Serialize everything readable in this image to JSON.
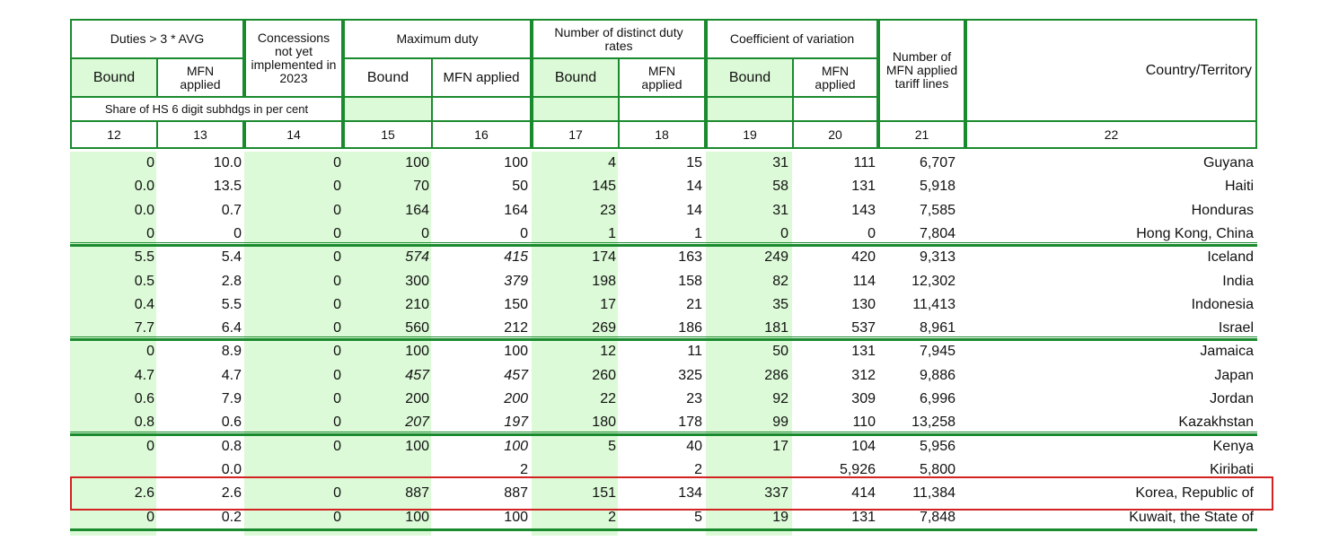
{
  "headers": {
    "duties_avg": "Duties > 3 * AVG",
    "bound": "Bound",
    "mfn_applied": "MFN applied",
    "concessions": "Concessions not yet implemented in 2023",
    "max_duty": "Maximum duty",
    "distinct_rates": "Number of distinct duty rates",
    "coef_var": "Coefficient of variation",
    "num_lines": "Number of MFN applied tariff lines",
    "country": "Country/Territory",
    "share_note": "Share of HS 6 digit subhdgs in per cent",
    "col_numbers": [
      "12",
      "13",
      "14",
      "15",
      "16",
      "17",
      "18",
      "19",
      "20",
      "21",
      "22"
    ]
  },
  "rows": [
    {
      "c12": "0",
      "c13": "10.0",
      "c14": "0",
      "c15": "100",
      "c16": "100",
      "c17": "4",
      "c18": "15",
      "c19": "31",
      "c20": "111",
      "c21": "6,707",
      "country": "Guyana"
    },
    {
      "c12": "0.0",
      "c13": "13.5",
      "c14": "0",
      "c15": "70",
      "c16": "50",
      "c17": "145",
      "c18": "14",
      "c19": "58",
      "c20": "131",
      "c21": "5,918",
      "country": "Haiti"
    },
    {
      "c12": "0.0",
      "c13": "0.7",
      "c14": "0",
      "c15": "164",
      "c16": "164",
      "c17": "23",
      "c18": "14",
      "c19": "31",
      "c20": "143",
      "c21": "7,585",
      "country": "Honduras"
    },
    {
      "c12": "0",
      "c13": "0",
      "c14": "0",
      "c15": "0",
      "c16": "0",
      "c17": "1",
      "c18": "1",
      "c19": "0",
      "c20": "0",
      "c21": "7,804",
      "country": "Hong Kong, China"
    },
    {
      "c12": "5.5",
      "c13": "5.4",
      "c14": "0",
      "c15": "574",
      "c16": "415",
      "c17": "174",
      "c18": "163",
      "c19": "249",
      "c20": "420",
      "c21": "9,313",
      "country": "Iceland"
    },
    {
      "c12": "0.5",
      "c13": "2.8",
      "c14": "0",
      "c15": "300",
      "c16": "379",
      "c17": "198",
      "c18": "158",
      "c19": "82",
      "c20": "114",
      "c21": "12,302",
      "country": "India"
    },
    {
      "c12": "0.4",
      "c13": "5.5",
      "c14": "0",
      "c15": "210",
      "c16": "150",
      "c17": "17",
      "c18": "21",
      "c19": "35",
      "c20": "130",
      "c21": "11,413",
      "country": "Indonesia"
    },
    {
      "c12": "7.7",
      "c13": "6.4",
      "c14": "0",
      "c15": "560",
      "c16": "212",
      "c17": "269",
      "c18": "186",
      "c19": "181",
      "c20": "537",
      "c21": "8,961",
      "country": "Israel"
    },
    {
      "c12": "0",
      "c13": "8.9",
      "c14": "0",
      "c15": "100",
      "c16": "100",
      "c17": "12",
      "c18": "11",
      "c19": "50",
      "c20": "131",
      "c21": "7,945",
      "country": "Jamaica"
    },
    {
      "c12": "4.7",
      "c13": "4.7",
      "c14": "0",
      "c15": "457",
      "c16": "457",
      "c17": "260",
      "c18": "325",
      "c19": "286",
      "c20": "312",
      "c21": "9,886",
      "country": "Japan"
    },
    {
      "c12": "0.6",
      "c13": "7.9",
      "c14": "0",
      "c15": "200",
      "c16": "200",
      "c17": "22",
      "c18": "23",
      "c19": "92",
      "c20": "309",
      "c21": "6,996",
      "country": "Jordan"
    },
    {
      "c12": "0.8",
      "c13": "0.6",
      "c14": "0",
      "c15": "207",
      "c16": "197",
      "c17": "180",
      "c18": "178",
      "c19": "99",
      "c20": "110",
      "c21": "13,258",
      "country": "Kazakhstan"
    },
    {
      "c12": "0",
      "c13": "0.8",
      "c14": "0",
      "c15": "100",
      "c16": "100",
      "c17": "5",
      "c18": "40",
      "c19": "17",
      "c20": "104",
      "c21": "5,956",
      "country": "Kenya"
    },
    {
      "c12": "",
      "c13": "0.0",
      "c14": "",
      "c15": "",
      "c16": "2",
      "c17": "",
      "c18": "2",
      "c19": "",
      "c20": "5,926",
      "c21": "5,800",
      "country": "Kiribati"
    },
    {
      "c12": "2.6",
      "c13": "2.6",
      "c14": "0",
      "c15": "887",
      "c16": "887",
      "c17": "151",
      "c18": "134",
      "c19": "337",
      "c20": "414",
      "c21": "11,384",
      "country": "Korea, Republic of"
    },
    {
      "c12": "0",
      "c13": "0.2",
      "c14": "0",
      "c15": "100",
      "c16": "100",
      "c17": "2",
      "c18": "5",
      "c19": "19",
      "c20": "131",
      "c21": "7,848",
      "country": "Kuwait, the State of"
    }
  ]
}
